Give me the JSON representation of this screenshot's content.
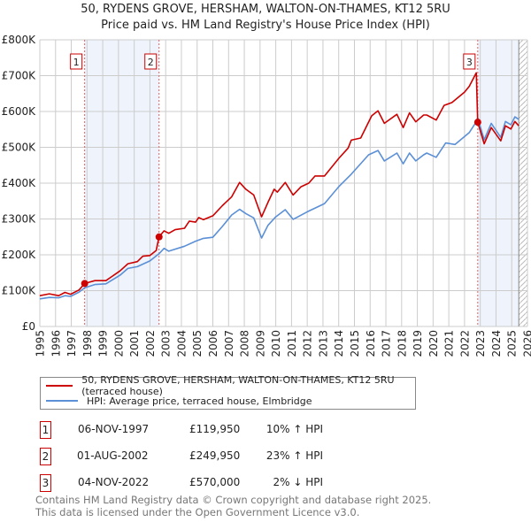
{
  "chart_data": {
    "type": "line",
    "title": "50, RYDENS GROVE, HERSHAM, WALTON-ON-THAMES, KT12 5RU",
    "subtitle": "Price paid vs. HM Land Registry's House Price Index (HPI)",
    "xlim": [
      1995,
      2026
    ],
    "ylim": [
      0,
      800000
    ],
    "x_ticks": [
      "1995",
      "1996",
      "1997",
      "1998",
      "1999",
      "2000",
      "2001",
      "2002",
      "2003",
      "2004",
      "2005",
      "2006",
      "2007",
      "2008",
      "2009",
      "2010",
      "2011",
      "2012",
      "2013",
      "2014",
      "2015",
      "2016",
      "2017",
      "2018",
      "2019",
      "2020",
      "2021",
      "2022",
      "2023",
      "2024",
      "2025",
      "2026"
    ],
    "y_ticks": [
      {
        "v": 0,
        "label": "£0"
      },
      {
        "v": 100000,
        "label": "£100K"
      },
      {
        "v": 200000,
        "label": "£200K"
      },
      {
        "v": 300000,
        "label": "£300K"
      },
      {
        "v": 400000,
        "label": "£400K"
      },
      {
        "v": 500000,
        "label": "£500K"
      },
      {
        "v": 600000,
        "label": "£600K"
      },
      {
        "v": 700000,
        "label": "£700K"
      },
      {
        "v": 800000,
        "label": "£800K"
      }
    ],
    "grid": true,
    "shaded_ranges": [
      [
        1997.85,
        2002.58
      ],
      [
        2022.84,
        2025.45
      ]
    ],
    "hatched_from": 2025.45,
    "series": [
      {
        "name": "50, RYDENS GROVE, HERSHAM, WALTON-ON-THAMES, KT12 5RU (terraced house)",
        "color": "#cc0000",
        "x": [
          1995.0,
          1995.6,
          1996.2,
          1996.6,
          1996.95,
          1997.5,
          1997.85,
          1998.5,
          1999.2,
          2000.1,
          2000.6,
          2001.2,
          2001.55,
          2002.0,
          2002.4,
          2002.58,
          2002.9,
          2003.2,
          2003.6,
          2004.2,
          2004.5,
          2004.9,
          2005.1,
          2005.4,
          2006.0,
          2006.6,
          2007.2,
          2007.7,
          2008.1,
          2008.6,
          2009.1,
          2009.5,
          2009.9,
          2010.1,
          2010.6,
          2011.1,
          2011.6,
          2012.1,
          2012.5,
          2013.1,
          2014.0,
          2014.6,
          2014.8,
          2015.4,
          2016.1,
          2016.5,
          2016.9,
          2017.7,
          2018.1,
          2018.5,
          2018.9,
          2019.4,
          2019.6,
          2020.2,
          2020.7,
          2021.2,
          2022.0,
          2022.3,
          2022.75,
          2022.84,
          2023.25,
          2023.7,
          2024.3,
          2024.6,
          2024.95,
          2025.2,
          2025.45
        ],
        "y": [
          86000,
          91000,
          86000,
          95000,
          90000,
          102000,
          119950,
          128000,
          128000,
          155000,
          175000,
          181000,
          196000,
          198000,
          212000,
          249950,
          267000,
          260000,
          270000,
          274000,
          294000,
          291000,
          304000,
          298000,
          309000,
          337000,
          362000,
          402000,
          383000,
          367000,
          306000,
          346000,
          383000,
          375000,
          402000,
          367000,
          390000,
          400000,
          420000,
          420000,
          469000,
          498000,
          520000,
          526000,
          588000,
          602000,
          567000,
          592000,
          555000,
          596000,
          571000,
          590000,
          590000,
          576000,
          617000,
          625000,
          654000,
          670000,
          708000,
          570000,
          510000,
          555000,
          518000,
          560000,
          551000,
          572000,
          560000
        ]
      },
      {
        "name": "HPI: Average price, terraced house, Elmbridge",
        "color": "#5b8fd6",
        "x": [
          1995.0,
          1995.6,
          1996.2,
          1996.6,
          1996.95,
          1997.5,
          1997.85,
          1998.5,
          1999.2,
          2000.1,
          2000.6,
          2001.2,
          2002.0,
          2002.58,
          2002.9,
          2003.2,
          2004.2,
          2004.9,
          2005.4,
          2006.0,
          2006.6,
          2007.2,
          2007.7,
          2008.1,
          2008.6,
          2009.1,
          2009.5,
          2010.0,
          2010.6,
          2011.1,
          2012.0,
          2013.1,
          2014.0,
          2014.8,
          2015.9,
          2016.5,
          2016.9,
          2017.7,
          2018.1,
          2018.5,
          2018.9,
          2019.4,
          2019.6,
          2020.2,
          2020.8,
          2021.4,
          2022.3,
          2022.7,
          2022.84,
          2023.25,
          2023.7,
          2024.3,
          2024.6,
          2024.95,
          2025.2,
          2025.45
        ],
        "y": [
          77000,
          81000,
          80000,
          86000,
          84000,
          96000,
          108000,
          117000,
          119000,
          143000,
          162000,
          167000,
          183000,
          203000,
          218000,
          210000,
          224000,
          238000,
          246000,
          249000,
          279000,
          311000,
          327000,
          315000,
          303000,
          247000,
          282000,
          306000,
          326000,
          299000,
          320000,
          343000,
          390000,
          425000,
          479000,
          491000,
          462000,
          484000,
          454000,
          484000,
          462000,
          479000,
          484000,
          472000,
          512000,
          508000,
          541000,
          568000,
          582000,
          521000,
          567000,
          528000,
          572000,
          563000,
          585000,
          578000
        ]
      }
    ],
    "sales": [
      {
        "n": "1",
        "x": 1997.85,
        "y": 119950
      },
      {
        "n": "2",
        "x": 2002.58,
        "y": 249950
      },
      {
        "n": "3",
        "x": 2022.84,
        "y": 570000
      }
    ],
    "legend_position": "below"
  },
  "legend": {
    "red_label": "50, RYDENS GROVE, HERSHAM, WALTON-ON-THAMES, KT12 5RU (terraced house)",
    "blue_label": "HPI: Average price, terraced house, Elmbridge"
  },
  "transactions": [
    {
      "n": "1",
      "date": "06-NOV-1997",
      "price": "£119,950",
      "hpi": "10% ↑ HPI"
    },
    {
      "n": "2",
      "date": "01-AUG-2002",
      "price": "£249,950",
      "hpi": "23% ↑ HPI"
    },
    {
      "n": "3",
      "date": "04-NOV-2022",
      "price": "£570,000",
      "hpi": "2% ↓ HPI"
    }
  ],
  "footer": {
    "line1": "Contains HM Land Registry data © Crown copyright and database right 2025.",
    "line2": "This data is licensed under the Open Government Licence v3.0."
  }
}
